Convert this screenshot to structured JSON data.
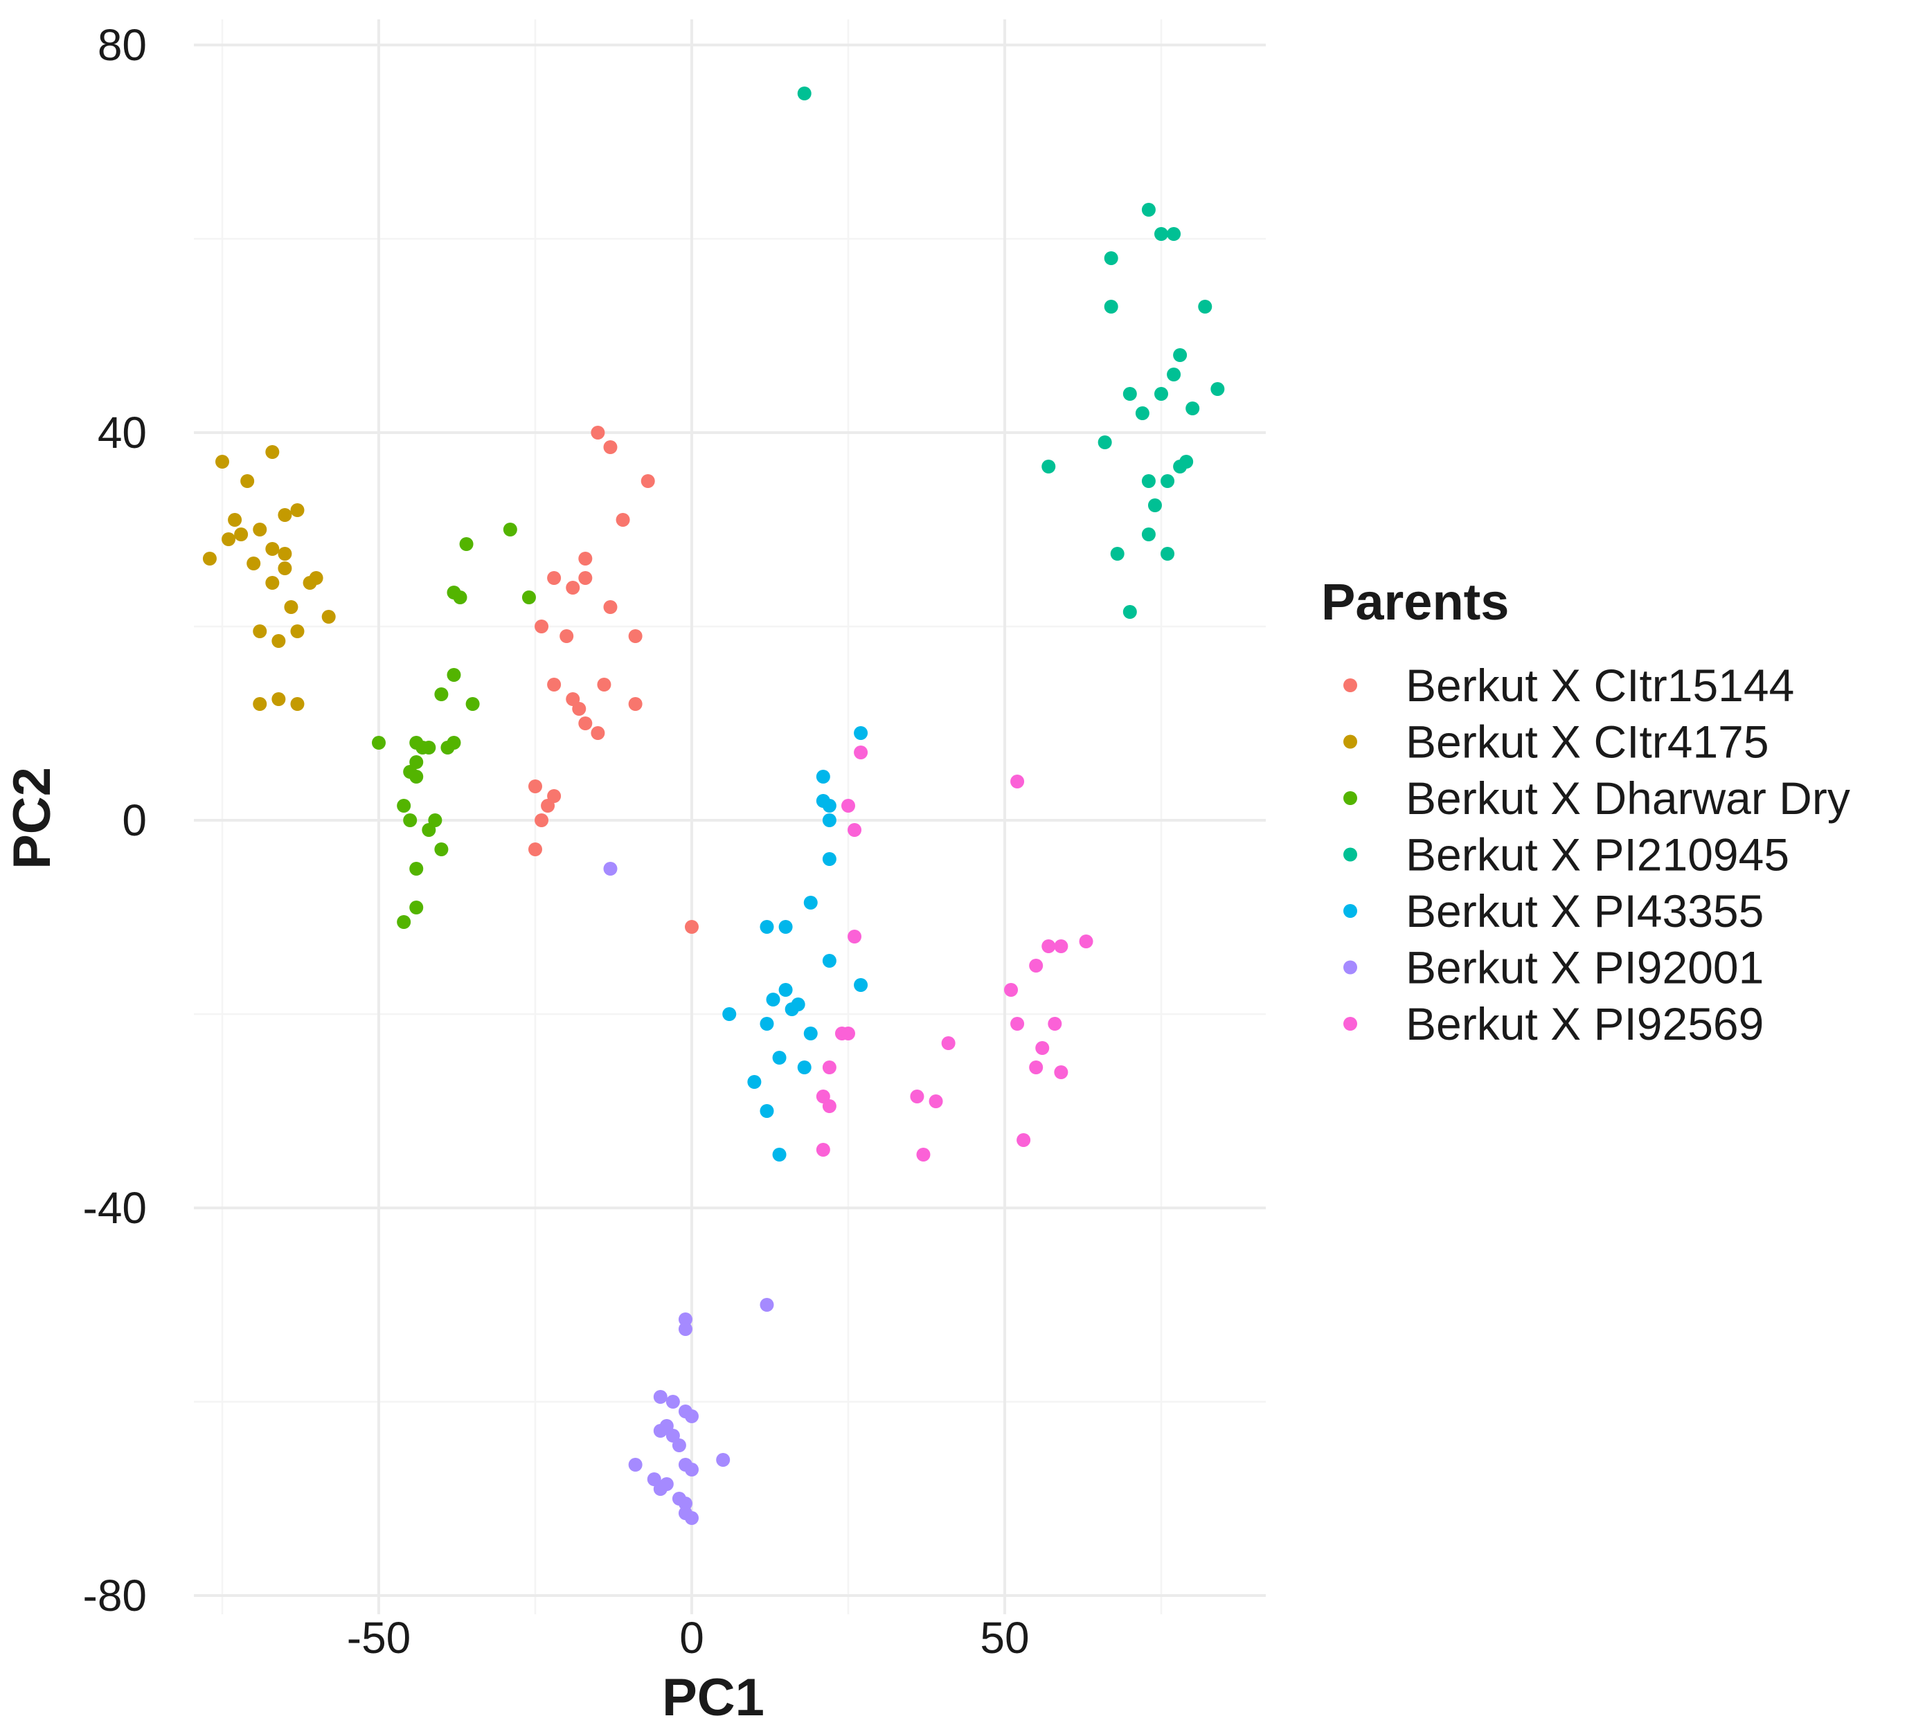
{
  "chart_data": {
    "type": "scatter",
    "xlabel": "PC1",
    "ylabel": "PC2",
    "xlim": [
      -88,
      91
    ],
    "ylim": [
      -80,
      80
    ],
    "x_ticks": [
      -50,
      0,
      50
    ],
    "y_ticks": [
      -80,
      -40,
      0,
      40,
      80
    ],
    "x_tick_labels": [
      "-50",
      "0",
      "50"
    ],
    "y_tick_labels": [
      "-80",
      "-40",
      "0",
      "40",
      "80"
    ],
    "grid": true,
    "legend": {
      "title": "Parents",
      "position": "right"
    },
    "series": [
      {
        "name": "Berkut X CItr15144",
        "color": "#F8766D",
        "points": [
          [
            -15,
            40
          ],
          [
            -13,
            38.5
          ],
          [
            -7,
            35
          ],
          [
            -11,
            31
          ],
          [
            -17,
            27
          ],
          [
            -22,
            25
          ],
          [
            -17,
            25
          ],
          [
            -19,
            24
          ],
          [
            -13,
            22
          ],
          [
            -24,
            20
          ],
          [
            -20,
            19
          ],
          [
            -9,
            19
          ],
          [
            -22,
            14
          ],
          [
            -14,
            14
          ],
          [
            -19,
            12.5
          ],
          [
            -18,
            11.5
          ],
          [
            -9,
            12
          ],
          [
            -17,
            10
          ],
          [
            -15,
            9
          ],
          [
            -25,
            3.5
          ],
          [
            -22,
            2.5
          ],
          [
            -23,
            1.5
          ],
          [
            -24,
            0
          ],
          [
            -25,
            -3
          ],
          [
            0,
            -11
          ]
        ]
      },
      {
        "name": "Berkut X CItr4175",
        "color": "#C49A00",
        "points": [
          [
            -75,
            37
          ],
          [
            -67,
            38
          ],
          [
            -71,
            35
          ],
          [
            -73,
            31
          ],
          [
            -69,
            30
          ],
          [
            -72,
            29.5
          ],
          [
            -65,
            31.5
          ],
          [
            -63,
            32
          ],
          [
            -74,
            29
          ],
          [
            -67,
            28
          ],
          [
            -65,
            27.5
          ],
          [
            -77,
            27
          ],
          [
            -70,
            26.5
          ],
          [
            -65,
            26
          ],
          [
            -67,
            24.5
          ],
          [
            -60,
            25
          ],
          [
            -61,
            24.5
          ],
          [
            -64,
            22
          ],
          [
            -58,
            21
          ],
          [
            -69,
            19.5
          ],
          [
            -63,
            19.5
          ],
          [
            -66,
            18.5
          ],
          [
            -69,
            12
          ],
          [
            -66,
            12.5
          ],
          [
            -63,
            12
          ]
        ]
      },
      {
        "name": "Berkut X Dharwar Dry",
        "color": "#53B400",
        "points": [
          [
            -29,
            30
          ],
          [
            -36,
            28.5
          ],
          [
            -38,
            23.5
          ],
          [
            -37,
            23
          ],
          [
            -26,
            23
          ],
          [
            -38,
            15
          ],
          [
            -40,
            13
          ],
          [
            -35,
            12
          ],
          [
            -50,
            8
          ],
          [
            -44,
            8
          ],
          [
            -43,
            7.5
          ],
          [
            -42,
            7.5
          ],
          [
            -38,
            8
          ],
          [
            -39,
            7.5
          ],
          [
            -44,
            6
          ],
          [
            -45,
            5
          ],
          [
            -44,
            4.5
          ],
          [
            -46,
            1.5
          ],
          [
            -45,
            0
          ],
          [
            -41,
            0
          ],
          [
            -42,
            -1
          ],
          [
            -40,
            -3
          ],
          [
            -44,
            -5
          ],
          [
            -44,
            -9
          ],
          [
            -46,
            -10.5
          ]
        ]
      },
      {
        "name": "Berkut X PI210945",
        "color": "#00C094",
        "points": [
          [
            18,
            75
          ],
          [
            73,
            63
          ],
          [
            75,
            60.5
          ],
          [
            77,
            60.5
          ],
          [
            67,
            58
          ],
          [
            82,
            53
          ],
          [
            67,
            53
          ],
          [
            78,
            48
          ],
          [
            84,
            44.5
          ],
          [
            77,
            46
          ],
          [
            70,
            44
          ],
          [
            75,
            44
          ],
          [
            80,
            42.5
          ],
          [
            72,
            42
          ],
          [
            66,
            39
          ],
          [
            57,
            36.5
          ],
          [
            79,
            37
          ],
          [
            78,
            36.5
          ],
          [
            73,
            35
          ],
          [
            76,
            35
          ],
          [
            74,
            32.5
          ],
          [
            73,
            29.5
          ],
          [
            68,
            27.5
          ],
          [
            76,
            27.5
          ],
          [
            70,
            21.5
          ]
        ]
      },
      {
        "name": "Berkut X PI43355",
        "color": "#00B6EB",
        "points": [
          [
            27,
            9
          ],
          [
            21,
            4.5
          ],
          [
            21,
            2
          ],
          [
            22,
            1.5
          ],
          [
            22,
            0
          ],
          [
            22,
            -4
          ],
          [
            19,
            -8.5
          ],
          [
            12,
            -11
          ],
          [
            15,
            -11
          ],
          [
            22,
            -14.5
          ],
          [
            15,
            -17.5
          ],
          [
            27,
            -17
          ],
          [
            13,
            -18.5
          ],
          [
            17,
            -19
          ],
          [
            16,
            -19.5
          ],
          [
            6,
            -20
          ],
          [
            12,
            -21
          ],
          [
            19,
            -22
          ],
          [
            14,
            -24.5
          ],
          [
            18,
            -25.5
          ],
          [
            10,
            -27
          ],
          [
            12,
            -30
          ],
          [
            14,
            -34.5
          ]
        ]
      },
      {
        "name": "Berkut X PI92001",
        "color": "#A58AFF",
        "points": [
          [
            -13,
            -5
          ],
          [
            12,
            -50
          ],
          [
            -1,
            -51.5
          ],
          [
            -1,
            -52.5
          ],
          [
            -5,
            -59.5
          ],
          [
            -3,
            -60
          ],
          [
            -1,
            -61
          ],
          [
            0,
            -61.5
          ],
          [
            -4,
            -62.5
          ],
          [
            -5,
            -63
          ],
          [
            -3,
            -63.5
          ],
          [
            -2,
            -64.5
          ],
          [
            5,
            -66
          ],
          [
            -9,
            -66.5
          ],
          [
            -1,
            -66.5
          ],
          [
            0,
            -67
          ],
          [
            -6,
            -68
          ],
          [
            -4,
            -68.5
          ],
          [
            -5,
            -69
          ],
          [
            -2,
            -70
          ],
          [
            -1,
            -70.5
          ],
          [
            -1,
            -71.5
          ],
          [
            0,
            -72
          ]
        ]
      },
      {
        "name": "Berkut X PI92569",
        "color": "#FB61D7",
        "points": [
          [
            27,
            7
          ],
          [
            52,
            4
          ],
          [
            25,
            1.5
          ],
          [
            26,
            -1
          ],
          [
            26,
            -12
          ],
          [
            63,
            -12.5
          ],
          [
            57,
            -13
          ],
          [
            59,
            -13
          ],
          [
            55,
            -15
          ],
          [
            51,
            -17.5
          ],
          [
            52,
            -21
          ],
          [
            58,
            -21
          ],
          [
            24,
            -22
          ],
          [
            25,
            -22
          ],
          [
            41,
            -23
          ],
          [
            56,
            -23.5
          ],
          [
            22,
            -25.5
          ],
          [
            55,
            -25.5
          ],
          [
            59,
            -26
          ],
          [
            21,
            -28.5
          ],
          [
            36,
            -28.5
          ],
          [
            39,
            -29
          ],
          [
            22,
            -29.5
          ],
          [
            53,
            -33
          ],
          [
            21,
            -34
          ],
          [
            37,
            -34.5
          ]
        ]
      }
    ]
  }
}
